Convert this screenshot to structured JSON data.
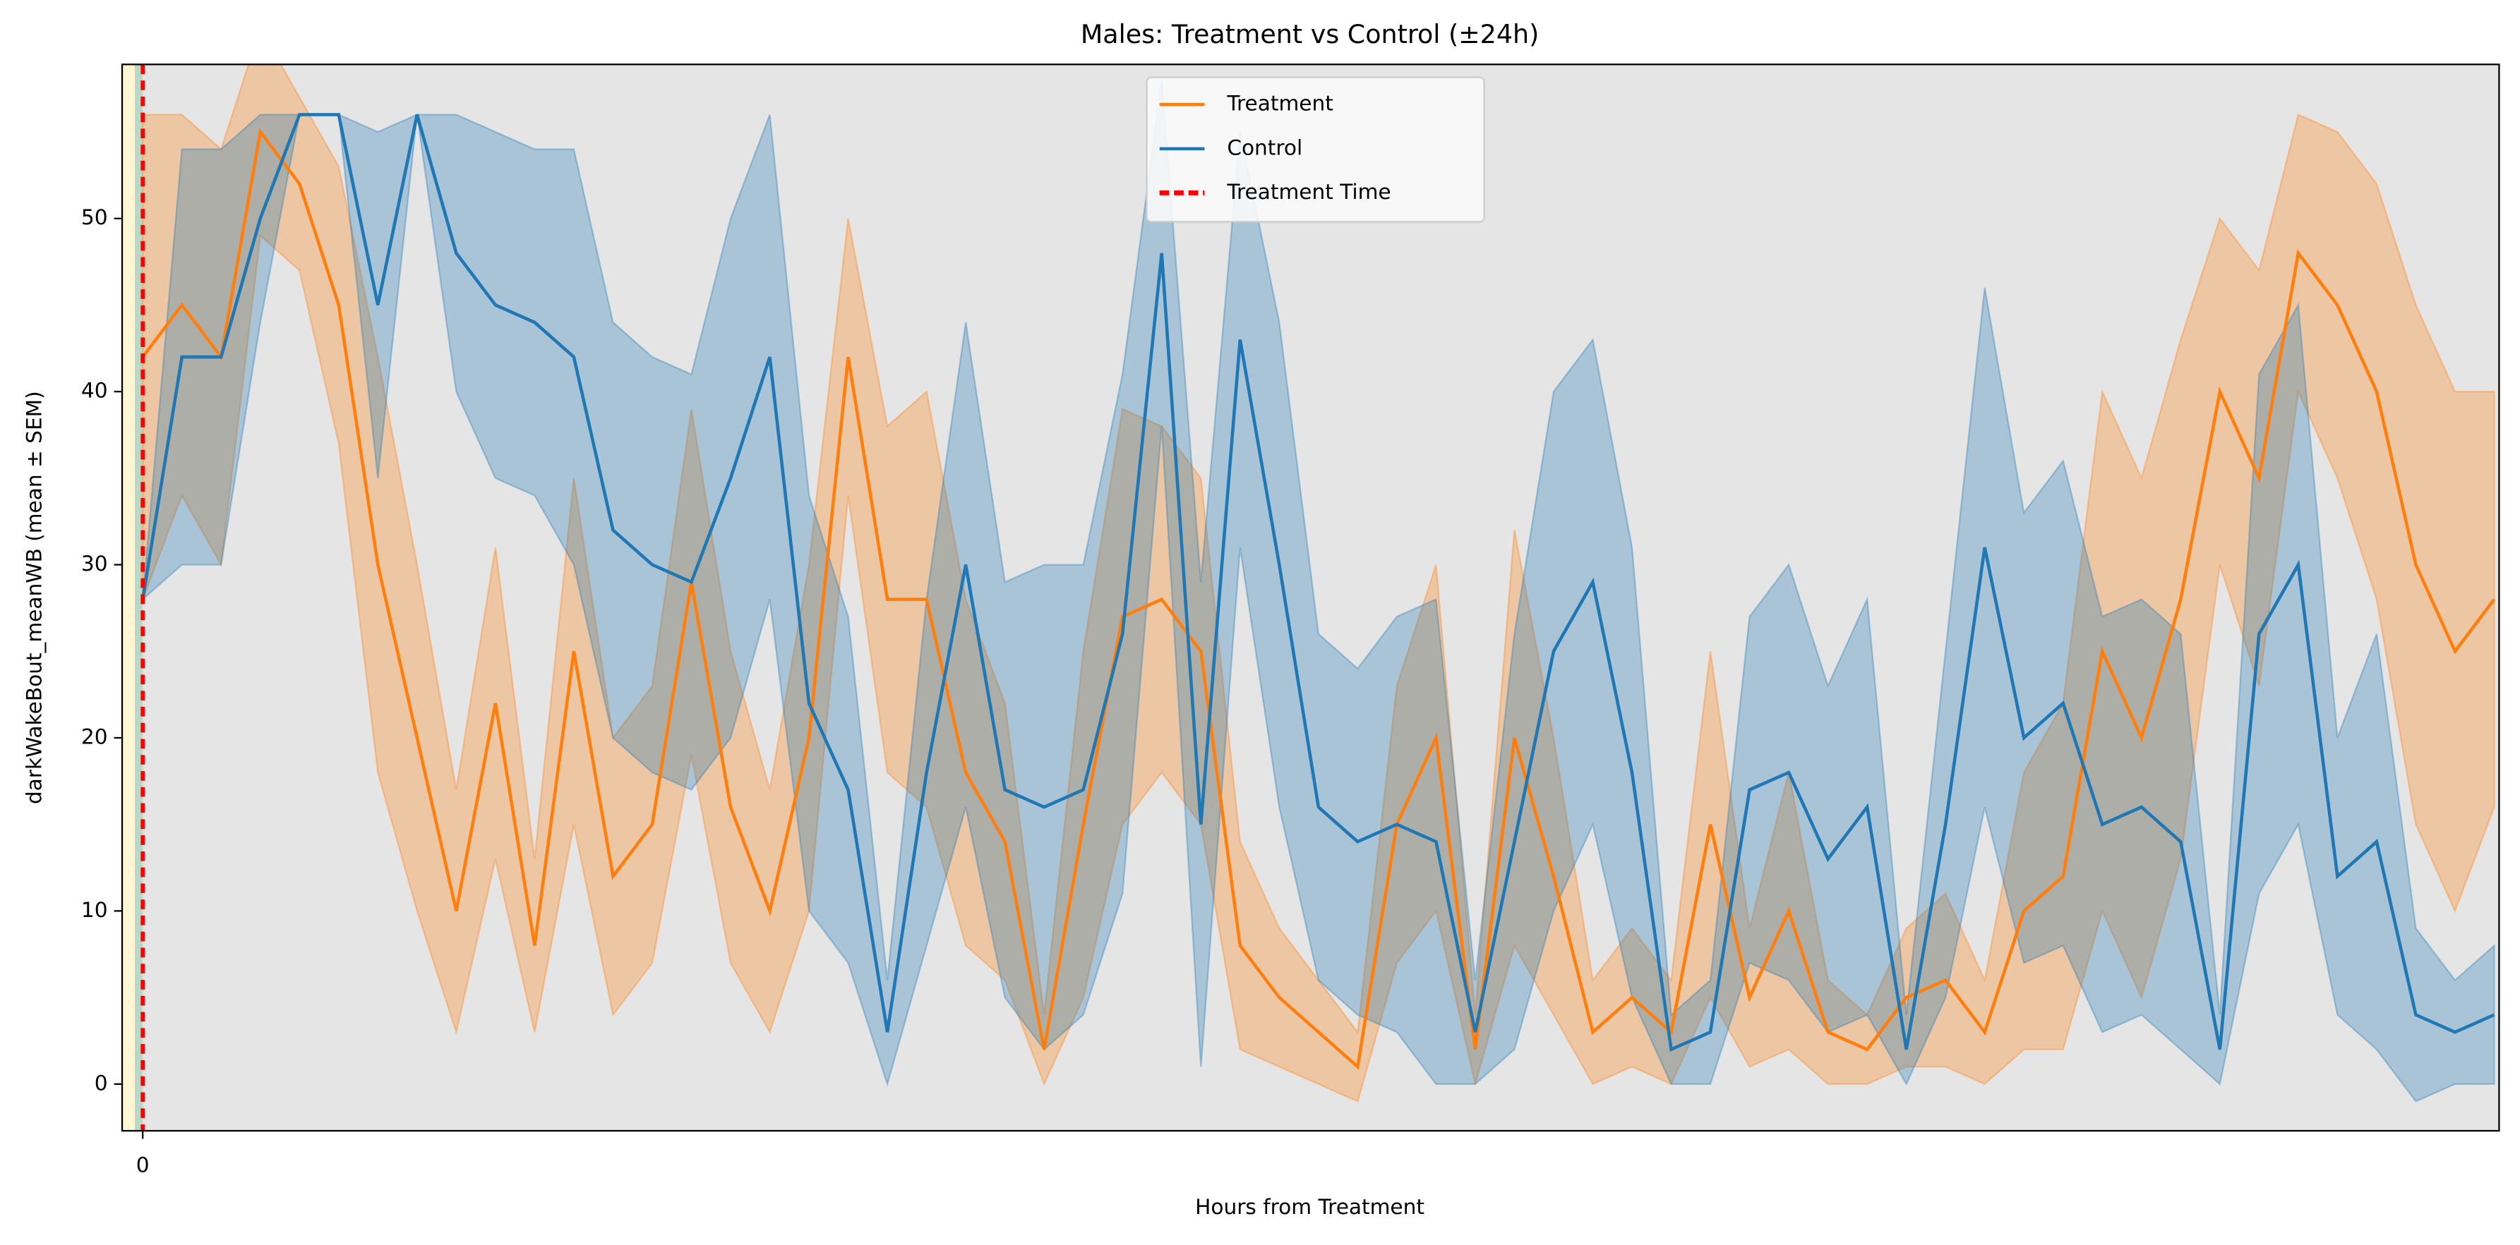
{
  "chart_data": {
    "type": "line",
    "title": "Males: Treatment vs Control (±24h)",
    "xlabel": "Hours from Treatment",
    "ylabel": "darkWakeBout_meanWB (mean ± SEM)",
    "x": [
      0,
      0.4,
      0.8,
      1.2,
      1.6,
      2,
      2.4,
      2.8,
      3.2,
      3.6,
      4,
      4.4,
      4.8,
      5.2,
      5.6,
      6,
      6.4,
      6.8,
      7.2,
      7.6,
      8,
      8.4,
      8.8,
      9.2,
      9.6,
      10,
      10.4,
      10.8,
      11.2,
      11.6,
      12,
      12.4,
      12.8,
      13.2,
      13.6,
      14,
      14.4,
      14.8,
      15.2,
      15.6,
      16,
      16.4,
      16.8,
      17.2,
      17.6,
      18,
      18.4,
      18.8,
      19.2,
      19.6,
      20,
      20.4,
      20.8,
      21.2,
      21.6,
      22,
      22.4,
      22.8,
      23.2,
      23.6,
      24
    ],
    "series": [
      {
        "name": "Treatment",
        "color": "#ff7f0e",
        "values": [
          42,
          45,
          42,
          55,
          52,
          45,
          30,
          20,
          10,
          22,
          8,
          25,
          12,
          15,
          29,
          16,
          10,
          20,
          42,
          28,
          28,
          18,
          14,
          2,
          15,
          27,
          28,
          25,
          8,
          5,
          3,
          1,
          15,
          20,
          2,
          20,
          12,
          3,
          5,
          3,
          15,
          5,
          10,
          3,
          2,
          5,
          6,
          3,
          10,
          12,
          25,
          20,
          28,
          40,
          35,
          48,
          45,
          40,
          30,
          25,
          28
        ],
        "sem": [
          14,
          11,
          12,
          6,
          5,
          8,
          12,
          10,
          7,
          9,
          5,
          10,
          8,
          8,
          10,
          9,
          7,
          10,
          8,
          10,
          12,
          10,
          8,
          2,
          10,
          12,
          10,
          10,
          6,
          4,
          3,
          2,
          8,
          10,
          2,
          12,
          8,
          3,
          4,
          3,
          10,
          4,
          8,
          3,
          2,
          4,
          5,
          3,
          8,
          10,
          15,
          15,
          15,
          10,
          12,
          8,
          10,
          12,
          15,
          15,
          12
        ]
      },
      {
        "name": "Control",
        "color": "#1f77b4",
        "values": [
          28,
          42,
          42,
          50,
          56,
          56,
          45,
          56,
          48,
          45,
          44,
          42,
          32,
          30,
          29,
          35,
          42,
          22,
          17,
          3,
          18,
          30,
          17,
          16,
          17,
          26,
          48,
          15,
          43,
          30,
          16,
          14,
          15,
          14,
          3,
          14,
          25,
          29,
          18,
          2,
          3,
          17,
          18,
          13,
          16,
          2,
          15,
          31,
          20,
          22,
          15,
          16,
          14,
          2,
          26,
          30,
          12,
          14,
          4,
          3,
          4
        ],
        "sem": [
          0,
          12,
          12,
          6,
          0,
          0,
          10,
          0,
          8,
          10,
          10,
          12,
          12,
          12,
          12,
          15,
          14,
          12,
          10,
          3,
          10,
          14,
          12,
          14,
          13,
          15,
          10,
          14,
          12,
          14,
          10,
          10,
          12,
          14,
          3,
          12,
          15,
          14,
          13,
          2,
          3,
          10,
          12,
          10,
          12,
          2,
          10,
          15,
          13,
          14,
          12,
          12,
          12,
          2,
          15,
          15,
          8,
          12,
          5,
          3,
          4
        ]
      }
    ],
    "treatment_line": {
      "name": "Treatment Time",
      "x": 0,
      "color": "#ff0000"
    },
    "spans": [
      {
        "from": -0.21,
        "to": -0.08,
        "color": "#fff6d5"
      },
      {
        "from": -0.08,
        "to": 0,
        "color": "#b9d9c6"
      }
    ],
    "xlim": [
      -0.21,
      24.05
    ],
    "xticks": [
      0
    ],
    "ylim": [
      -2.7,
      58.9
    ],
    "yticks": [
      0,
      10,
      20,
      30,
      40,
      50
    ],
    "background": "#e5e5e5",
    "legend": "upper center"
  }
}
